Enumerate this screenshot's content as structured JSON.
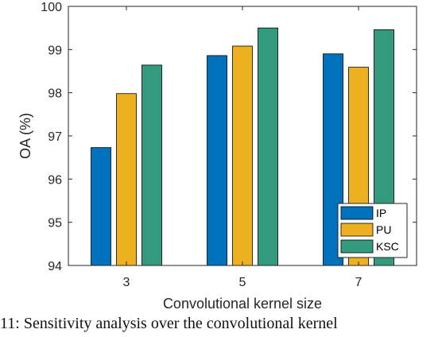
{
  "chart_data": {
    "type": "bar",
    "categories": [
      "3",
      "5",
      "7"
    ],
    "series": [
      {
        "name": "IP",
        "color": "#0072BD",
        "values": [
          96.73,
          98.86,
          98.9
        ]
      },
      {
        "name": "PU",
        "color": "#EDB120",
        "values": [
          97.98,
          99.08,
          98.59
        ]
      },
      {
        "name": "KSC",
        "color": "#349A7D",
        "values": [
          98.64,
          99.5,
          99.46
        ]
      }
    ],
    "xlabel": "Convolutional kernel size",
    "ylabel": "OA (%)",
    "ylim": [
      94,
      100
    ],
    "yticks": [
      "94",
      "95",
      "96",
      "97",
      "98",
      "99",
      "100"
    ],
    "legend_position": "bottom-right",
    "grid": false
  },
  "caption": "11: Sensitivity analysis over the convolutional kernel"
}
